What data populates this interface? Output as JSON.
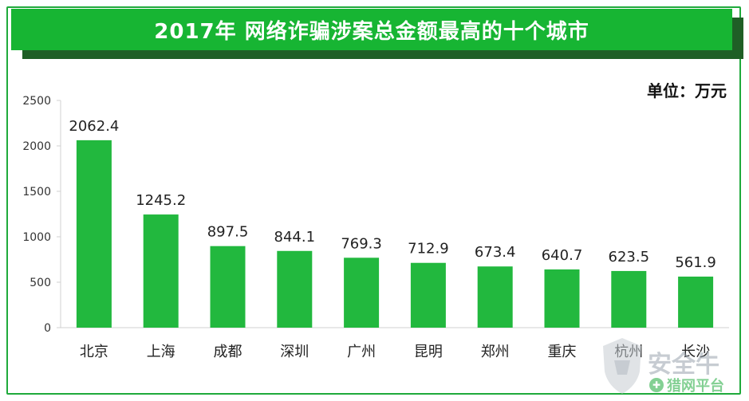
{
  "chart_data": {
    "type": "bar",
    "title": "2017年 网络诈骗涉案总金额最高的十个城市",
    "unit_label": "单位：万元",
    "categories": [
      "北京",
      "上海",
      "成都",
      "深圳",
      "广州",
      "昆明",
      "郑州",
      "重庆",
      "杭州",
      "长沙"
    ],
    "values": [
      2062.4,
      1245.2,
      897.5,
      844.1,
      769.3,
      712.9,
      673.4,
      640.7,
      623.5,
      561.9
    ],
    "value_labels": [
      "2062.4",
      "1245.2",
      "897.5",
      "844.1",
      "769.3",
      "712.9",
      "673.4",
      "640.7",
      "623.5",
      "561.9"
    ],
    "ylim": [
      0,
      2500
    ],
    "yticks": [
      0,
      500,
      1000,
      1500,
      2000,
      2500
    ],
    "xlabel": "",
    "ylabel": "",
    "grid": false,
    "bar_color": "#22b83e"
  },
  "watermark": {
    "brand": "安全牛",
    "platform": "猎网平台"
  }
}
